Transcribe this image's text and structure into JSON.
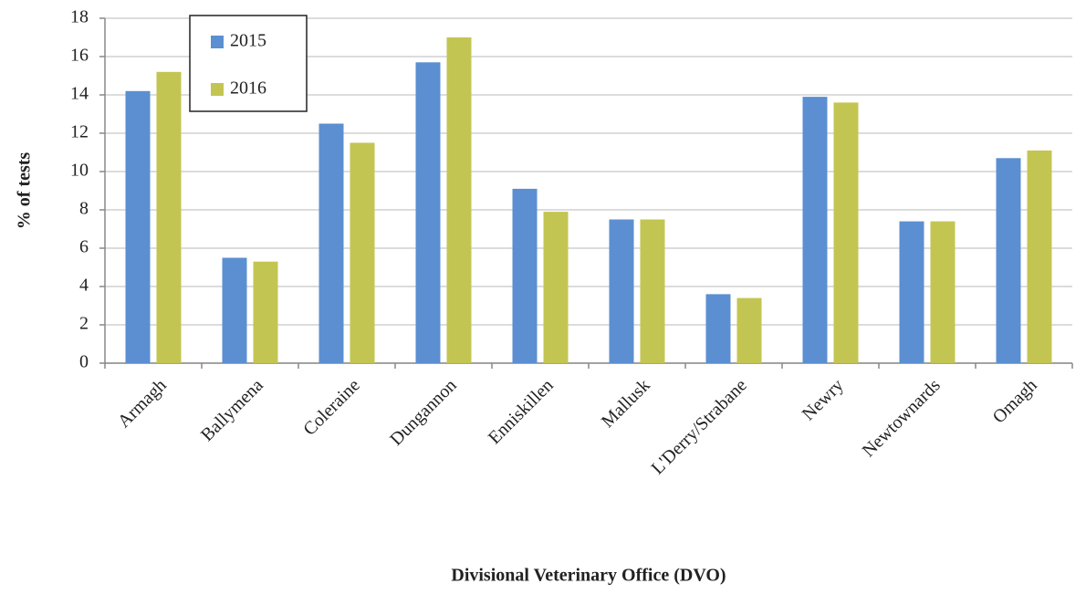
{
  "chart_data": {
    "type": "bar",
    "x_label": "Divisional Veterinary Office (DVO)",
    "y_label": "% of tests",
    "categories": [
      "Armagh",
      "Ballymena",
      "Coleraine",
      "Dungannon",
      "Enniskillen",
      "Mallusk",
      "L'Derry/Strabane",
      "Newry",
      "Newtownards",
      "Omagh"
    ],
    "series": [
      {
        "name": "2015",
        "color": "#5b8fd1",
        "values": [
          14.2,
          5.5,
          12.5,
          15.7,
          9.1,
          7.5,
          3.6,
          13.9,
          7.4,
          10.7
        ]
      },
      {
        "name": "2016",
        "color": "#c3c552",
        "values": [
          15.2,
          5.3,
          11.5,
          17.0,
          7.9,
          7.5,
          3.4,
          13.6,
          7.4,
          11.1
        ]
      }
    ],
    "ylim": [
      0,
      18
    ],
    "yticks": [
      0,
      2,
      4,
      6,
      8,
      10,
      12,
      14,
      16,
      18
    ],
    "grid": true,
    "legend": "top-left"
  }
}
